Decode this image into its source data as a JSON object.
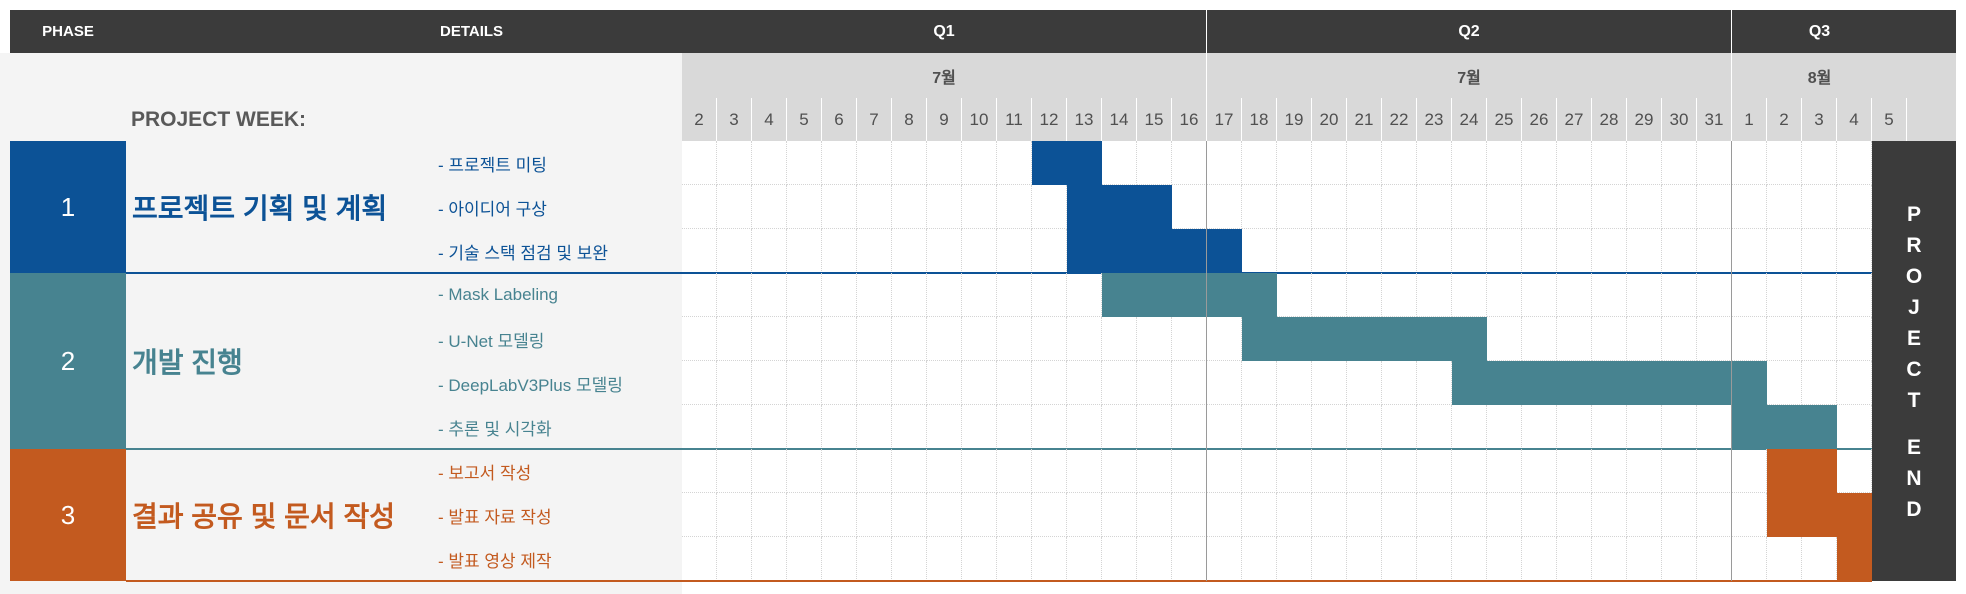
{
  "header": {
    "phase_label": "PHASE",
    "details_label": "DETAILS",
    "project_week_label": "PROJECT WEEK:",
    "quarters": [
      "Q1",
      "Q2",
      "Q3"
    ],
    "months": [
      "7월",
      "7월",
      "8월"
    ],
    "weeks": [
      "2",
      "3",
      "4",
      "5",
      "6",
      "7",
      "8",
      "9",
      "10",
      "11",
      "12",
      "13",
      "14",
      "15",
      "16",
      "17",
      "18",
      "19",
      "20",
      "21",
      "22",
      "23",
      "24",
      "25",
      "26",
      "27",
      "28",
      "29",
      "30",
      "31",
      "1",
      "2",
      "3",
      "4",
      "5"
    ]
  },
  "phases": [
    {
      "number": "1",
      "name": "프로젝트 기획 및 계획",
      "color": "#0c5296",
      "tasks": [
        {
          "label": "- 프로젝트 미팅",
          "start": "12",
          "end": "13"
        },
        {
          "label": "- 아이디어 구상",
          "start": "13",
          "end": "15"
        },
        {
          "label": "- 기술 스택 점검 및 보완",
          "start": "13",
          "end": "17"
        }
      ]
    },
    {
      "number": "2",
      "name": "개발 진행",
      "color": "#478390",
      "tasks": [
        {
          "label": "- Mask Labeling",
          "start": "14",
          "end": "18"
        },
        {
          "label": "- U-Net 모델링",
          "start": "18",
          "end": "24"
        },
        {
          "label": "- DeepLabV3Plus 모델링",
          "start": "24",
          "end": "8월 1"
        },
        {
          "label": "- 추론 및 시각화",
          "start": "8월 1",
          "end": "8월 3"
        }
      ]
    },
    {
      "number": "3",
      "name": "결과 공유 및 문서 작성",
      "color": "#c35a1f",
      "tasks": [
        {
          "label": "- 보고서 작성",
          "start": "8월 2",
          "end": "8월 3"
        },
        {
          "label": "- 발표 자료 작성",
          "start": "8월 2",
          "end": "8월 4"
        },
        {
          "label": "- 발표 영상 제작",
          "start": "8월 4",
          "end": "8월 4"
        }
      ]
    }
  ],
  "end_marker": {
    "word1": [
      "P",
      "R",
      "O",
      "J",
      "E",
      "C",
      "T"
    ],
    "word2": [
      "E",
      "N",
      "D"
    ]
  }
}
